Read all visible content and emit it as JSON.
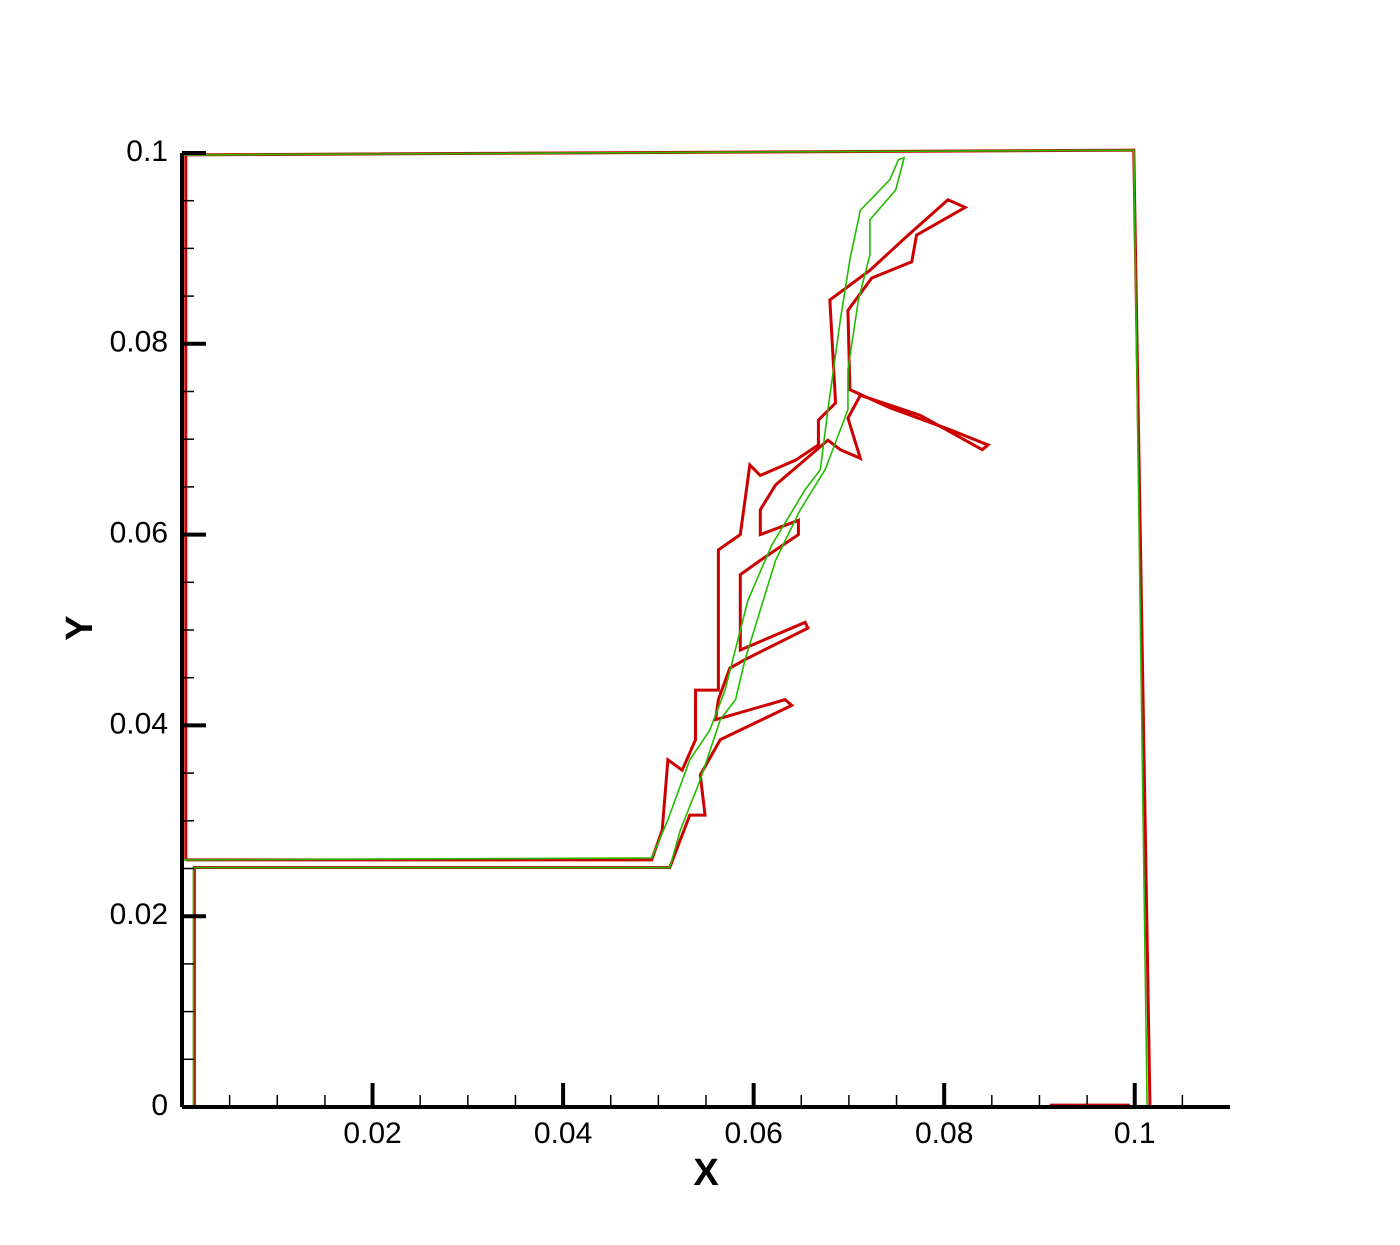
{
  "chart_data": {
    "type": "line",
    "xlabel": "X",
    "ylabel": "Y",
    "xlim": [
      0,
      0.11
    ],
    "ylim": [
      0,
      0.1
    ],
    "xticks": [
      0.02,
      0.04,
      0.06,
      0.08,
      0.1
    ],
    "yticks": [
      0,
      0.02,
      0.04,
      0.06,
      0.08,
      0.1
    ],
    "xminorticks": [
      0.005,
      0.01,
      0.015,
      0.025,
      0.03,
      0.035,
      0.045,
      0.05,
      0.055,
      0.065,
      0.07,
      0.075,
      0.085,
      0.09,
      0.095,
      0.105
    ],
    "yminorticks": [
      0.005,
      0.01,
      0.015,
      0.025,
      0.03,
      0.035,
      0.045,
      0.05,
      0.055,
      0.065,
      0.07,
      0.075,
      0.085,
      0.09,
      0.095
    ],
    "series": [
      {
        "color": "#cc0000",
        "width": 3,
        "x": [
          0.0004,
          0.0004,
          0.0999,
          0.1016,
          null,
          0.0911,
          0.0995,
          null,
          0.0004,
          0.0493,
          0.0504,
          0.051,
          0.0525,
          0.0539,
          0.0539,
          0.0563,
          0.0563,
          0.0586,
          0.0596,
          0.0607,
          0.0644,
          0.0668,
          0.0668,
          0.0686,
          0.068,
          0.0722,
          0.0759,
          0.0804,
          0.0822,
          0.0771,
          0.0766,
          0.0724,
          0.0699,
          0.0701,
          0.0743,
          0.0806,
          0.0846,
          0.084,
          0.0775,
          0.0712,
          0.0699,
          0.0712,
          0.0691,
          0.0678,
          0.0623,
          0.0607,
          0.0607,
          0.0647,
          0.0647,
          0.0607,
          0.0586,
          0.0586,
          0.0654,
          0.0657,
          0.0591,
          0.0575,
          0.0563,
          0.056,
          0.0633,
          0.064,
          0.0565,
          0.0544,
          0.0549,
          0.0533,
          0.0523,
          0.0512,
          0.0013,
          0.0013
        ],
        "y": [
          0.0259,
          0.0998,
          0.1003,
          0,
          null,
          0.0002,
          0.0002,
          null,
          0.0259,
          0.0259,
          0.029,
          0.0364,
          0.0353,
          0.0385,
          0.0437,
          0.0437,
          0.0584,
          0.06,
          0.0673,
          0.0662,
          0.0678,
          0.0694,
          0.072,
          0.0738,
          0.0846,
          0.0877,
          0.0911,
          0.0951,
          0.0943,
          0.0914,
          0.0886,
          0.0869,
          0.0835,
          0.0752,
          0.0733,
          0.071,
          0.0694,
          0.0689,
          0.0725,
          0.0746,
          0.0722,
          0.068,
          0.0689,
          0.0699,
          0.0652,
          0.0626,
          0.06,
          0.0615,
          0.06,
          0.0573,
          0.0558,
          0.0479,
          0.0508,
          0.0502,
          0.0469,
          0.046,
          0.0427,
          0.0406,
          0.0427,
          0.0421,
          0.0385,
          0.0348,
          0.0306,
          0.0306,
          0.028,
          0.0251,
          0.0251,
          0
        ]
      },
      {
        "color": "#22bb00",
        "width": 1.6,
        "x": [
          0,
          0,
          0.0999,
          0.1013,
          null,
          0,
          0.0493,
          0.051,
          0.0533,
          0.0554,
          0.057,
          0.0594,
          0.0619,
          0.0654,
          0.067,
          0.0678,
          0.0691,
          0.0701,
          0.0712,
          0.0743,
          0.0752,
          0.0758,
          0.0749,
          0.0722,
          0.0722,
          0.071,
          0.0699,
          0.0699,
          0.0675,
          0.0649,
          0.0623,
          0.0607,
          0.0591,
          0.0581,
          0.0565,
          0.0544,
          0.0523,
          0.0512,
          0.0012,
          0.0012
        ],
        "y": [
          0.0259,
          0.0998,
          0.1003,
          0,
          null,
          0.0259,
          0.0261,
          0.0301,
          0.0364,
          0.0395,
          0.0437,
          0.0531,
          0.0589,
          0.0647,
          0.0668,
          0.0731,
          0.0825,
          0.0888,
          0.094,
          0.0972,
          0.0993,
          0.0995,
          0.0961,
          0.093,
          0.0893,
          0.0846,
          0.0773,
          0.0731,
          0.0668,
          0.0626,
          0.0573,
          0.0521,
          0.0469,
          0.0427,
          0.0406,
          0.0343,
          0.029,
          0.0251,
          0.0251,
          0
        ]
      }
    ]
  }
}
